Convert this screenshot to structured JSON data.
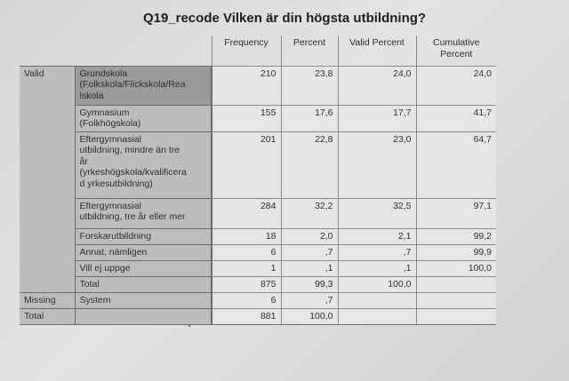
{
  "title": "Q19_recode Vilken är din högsta utbildning?",
  "columns": [
    "Frequency",
    "Percent",
    "Valid Percent",
    "Cumulative\nPercent"
  ],
  "groups": {
    "valid": "Valid",
    "missing": "Missing",
    "total": "Total"
  },
  "rows": [
    {
      "label": "Grundskola\n(Folkskola/Flickskola/Rea\nlskola",
      "frequency": "210",
      "percent": "23,8",
      "valid_percent": "24,0",
      "cumulative": "24,0"
    },
    {
      "label": "Gymnasium\n(Folkhögskola)",
      "frequency": "155",
      "percent": "17,6",
      "valid_percent": "17,7",
      "cumulative": "41,7"
    },
    {
      "label": "Eftergymnasial\nutbildning, mindre än tre\når\n(yrkeshögskola/kvalificera\nd yrkesutbildning)",
      "frequency": "201",
      "percent": "22,8",
      "valid_percent": "23,0",
      "cumulative": "64,7"
    },
    {
      "label": "Eftergymnasial\nutbildning, tre år eller mer",
      "frequency": "284",
      "percent": "32,2",
      "valid_percent": "32,5",
      "cumulative": "97,1"
    },
    {
      "label": "Forskarutbildning",
      "frequency": "18",
      "percent": "2,0",
      "valid_percent": "2,1",
      "cumulative": "99,2"
    },
    {
      "label": "Annat, nämligen",
      "frequency": "6",
      "percent": ",7",
      "valid_percent": ",7",
      "cumulative": "99,9"
    },
    {
      "label": "Vill ej uppge",
      "frequency": "1",
      "percent": ",1",
      "valid_percent": ",1",
      "cumulative": "100,0"
    },
    {
      "label": "Total",
      "frequency": "875",
      "percent": "99,3",
      "valid_percent": "100,0",
      "cumulative": ""
    }
  ],
  "missing_row": {
    "label": "System",
    "frequency": "6",
    "percent": ",7"
  },
  "total_row": {
    "frequency": "881",
    "percent": "100,0"
  }
}
